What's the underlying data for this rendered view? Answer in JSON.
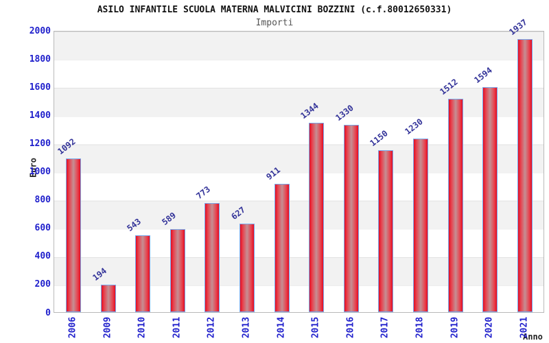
{
  "title": "ASILO INFANTILE SCUOLA MATERNA MALVICINI BOZZINI (c.f.80012650331)",
  "subtitle": "Importi",
  "chart_data": {
    "type": "bar",
    "categories": [
      "2006",
      "2009",
      "2010",
      "2011",
      "2012",
      "2013",
      "2014",
      "2015",
      "2016",
      "2017",
      "2018",
      "2019",
      "2020",
      "2021"
    ],
    "values": [
      1092,
      194,
      543,
      589,
      773,
      627,
      911,
      1344,
      1330,
      1150,
      1230,
      1512,
      1594,
      1937
    ],
    "title": "ASILO INFANTILE SCUOLA MATERNA MALVICINI BOZZINI (c.f.80012650331)",
    "subtitle": "Importi",
    "xlabel": "Anno",
    "ylabel": "Euro",
    "ylim": [
      0,
      2000
    ],
    "ytick_step": 200,
    "yticks": [
      0,
      200,
      400,
      600,
      800,
      1000,
      1200,
      1400,
      1600,
      1800,
      2000
    ],
    "legend": "none",
    "grid": "horizontal-bands",
    "colors": {
      "bar_fill": "#e30d22",
      "bar_center": "#c58f94",
      "bar_border": "#77a8ec",
      "axis_tick_text": "#2020cc",
      "bar_value_text": "#333399",
      "band_gray": "#f2f2f2",
      "band_white": "#ffffff",
      "title_text": "#111111",
      "subtitle_text": "#555555"
    }
  }
}
